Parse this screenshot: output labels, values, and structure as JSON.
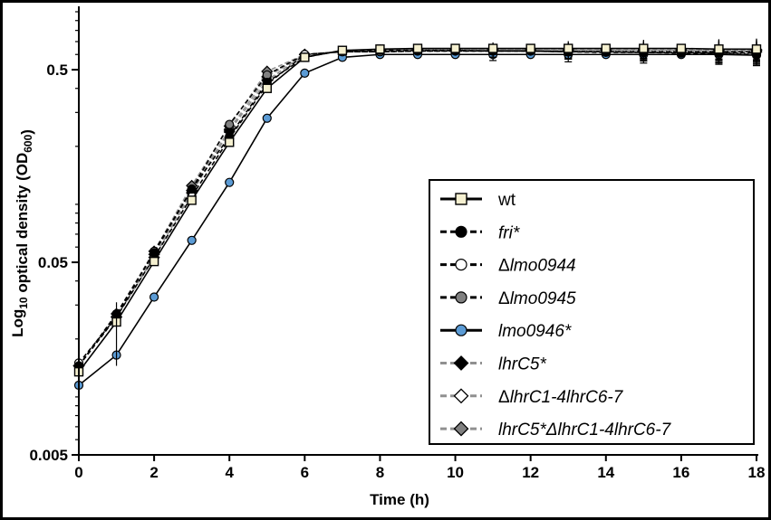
{
  "chart_data": {
    "type": "line",
    "xlabel": "Time (h)",
    "ylabel_main": "Log",
    "ylabel_sub": "10",
    "ylabel_rest": " optical density (OD",
    "ylabel_sub2": "600",
    "ylabel_end": ")",
    "yscale": "log",
    "xlim": [
      0,
      18
    ],
    "ylim": [
      0.005,
      1.0
    ],
    "x_ticks": [
      0,
      2,
      4,
      6,
      8,
      10,
      12,
      14,
      16,
      18
    ],
    "x_tick_labels": [
      "0",
      "2",
      "4",
      "6",
      "8",
      "10",
      "12",
      "14",
      "16",
      "18"
    ],
    "y_ticks": [
      0.005,
      0.05,
      0.5
    ],
    "y_tick_labels": [
      "0.005",
      "0.05",
      "0.5"
    ],
    "legend_position": "bottom-right",
    "x": [
      0,
      1,
      2,
      3,
      4,
      5,
      6,
      7,
      8,
      9,
      10,
      11,
      12,
      13,
      14,
      15,
      16,
      17,
      18
    ],
    "series": [
      {
        "name": "wt",
        "italic": false,
        "prefix": "",
        "marker": "square",
        "fill": "#f5f0d0",
        "line": "#000000",
        "dash": "solid",
        "values": [
          0.0135,
          0.0245,
          0.0505,
          0.105,
          0.21,
          0.4,
          0.58,
          0.63,
          0.64,
          0.645,
          0.645,
          0.645,
          0.645,
          0.645,
          0.645,
          0.645,
          0.645,
          0.64,
          0.64
        ]
      },
      {
        "name": "fri*",
        "italic": true,
        "prefix": "",
        "marker": "circle",
        "fill": "#000000",
        "line": "#000000",
        "dash": "dashed",
        "values": [
          0.0145,
          0.027,
          0.056,
          0.12,
          0.225,
          0.43,
          0.58,
          0.63,
          0.63,
          0.63,
          0.63,
          0.625,
          0.625,
          0.62,
          0.615,
          0.615,
          0.61,
          0.61,
          0.6
        ]
      },
      {
        "name": "lmo0944",
        "italic": true,
        "prefix": "Δ",
        "marker": "circle",
        "fill": "#ffffff",
        "line": "#000000",
        "dash": "dashed",
        "values": [
          0.015,
          0.026,
          0.053,
          0.11,
          0.22,
          0.42,
          0.6,
          0.62,
          0.62,
          0.625,
          0.625,
          0.625,
          0.625,
          0.62,
          0.62,
          0.62,
          0.62,
          0.62,
          0.62
        ]
      },
      {
        "name": "lmo0945",
        "italic": true,
        "prefix": "Δ",
        "marker": "circle",
        "fill": "#808080",
        "line": "#000000",
        "dash": "dashed",
        "values": [
          0.0145,
          0.026,
          0.057,
          0.12,
          0.26,
          0.47,
          0.6,
          0.62,
          0.62,
          0.625,
          0.625,
          0.625,
          0.625,
          0.62,
          0.62,
          0.615,
          0.615,
          0.61,
          0.61
        ]
      },
      {
        "name": "lmo0946*",
        "italic": true,
        "prefix": "",
        "marker": "circle",
        "fill": "#5b9bd5",
        "line": "#000000",
        "dash": "solid",
        "values": [
          0.0115,
          0.0165,
          0.033,
          0.065,
          0.13,
          0.28,
          0.48,
          0.58,
          0.6,
          0.6,
          0.6,
          0.6,
          0.6,
          0.6,
          0.6,
          0.6,
          0.6,
          0.6,
          0.595
        ]
      },
      {
        "name": "lhrC5*",
        "italic": true,
        "prefix": "",
        "marker": "diamond",
        "fill": "#000000",
        "line": "#909090",
        "dash": "dashed",
        "values": [
          0.0145,
          0.026,
          0.053,
          0.115,
          0.24,
          0.44,
          0.6,
          0.62,
          0.63,
          0.63,
          0.63,
          0.63,
          0.63,
          0.63,
          0.63,
          0.63,
          0.63,
          0.62,
          0.62
        ]
      },
      {
        "name": "lhrC1-4lhrC6-7",
        "italic": true,
        "prefix": "Δ",
        "marker": "diamond",
        "fill": "#ffffff",
        "line": "#909090",
        "dash": "dashed",
        "values": [
          0.0145,
          0.026,
          0.055,
          0.118,
          0.245,
          0.46,
          0.6,
          0.62,
          0.63,
          0.635,
          0.635,
          0.635,
          0.635,
          0.63,
          0.63,
          0.63,
          0.63,
          0.63,
          0.63
        ]
      },
      {
        "name": "lhrC1-4lhrC6-7",
        "italic": true,
        "prefix": "lhrC5*Δ",
        "marker": "diamond",
        "fill": "#808080",
        "line": "#909090",
        "dash": "dashed",
        "values": [
          0.0145,
          0.027,
          0.057,
          0.125,
          0.255,
          0.49,
          0.6,
          0.62,
          0.63,
          0.635,
          0.635,
          0.635,
          0.635,
          0.635,
          0.635,
          0.635,
          0.635,
          0.635,
          0.635
        ]
      }
    ]
  }
}
